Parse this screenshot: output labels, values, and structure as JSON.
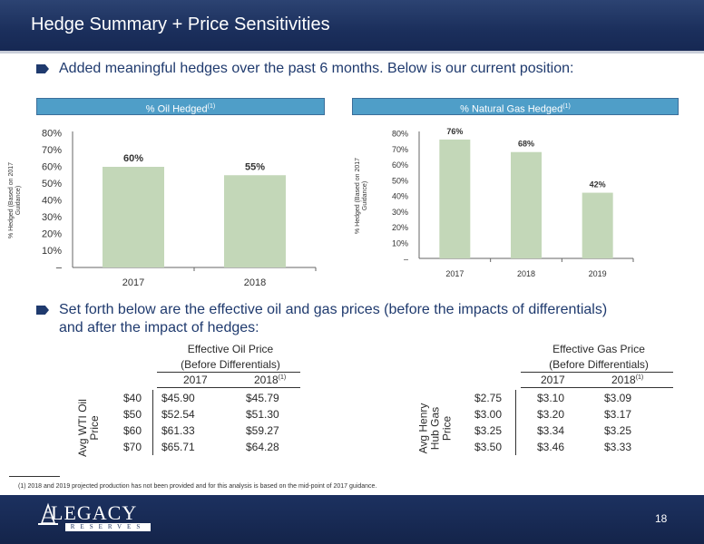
{
  "header": {
    "title": "Hedge Summary + Price Sensitivities"
  },
  "bullets": [
    "Added meaningful hedges over the past 6 months.  Below is our current position:",
    "Set forth below are the effective oil and gas prices (before the impacts of differentials)",
    "and after the impact of hedges:"
  ],
  "chart_data": [
    {
      "type": "bar",
      "title": "% Oil Hedged",
      "title_sup": "(1)",
      "ylabel": "% Hedged (Based on 2017 Guidance)",
      "categories": [
        "2017",
        "2018"
      ],
      "values": [
        60,
        55
      ],
      "data_labels": [
        "60%",
        "55%"
      ],
      "ylim": [
        0,
        80
      ],
      "ticks": [
        "–",
        "10%",
        "20%",
        "30%",
        "40%",
        "50%",
        "60%",
        "70%",
        "80%"
      ],
      "bar_color": "#c3d7b8",
      "grid": false
    },
    {
      "type": "bar",
      "title": "% Natural Gas Hedged",
      "title_sup": "(1)",
      "ylabel": "% Hedged (Based on 2017 Guidance)",
      "categories": [
        "2017",
        "2018",
        "2019"
      ],
      "values": [
        76,
        68,
        42
      ],
      "data_labels": [
        "76%",
        "68%",
        "42%"
      ],
      "ylim": [
        0,
        80
      ],
      "ticks": [
        "–",
        "10%",
        "20%",
        "30%",
        "40%",
        "50%",
        "60%",
        "70%",
        "80%"
      ],
      "bar_color": "#c3d7b8",
      "grid": false
    }
  ],
  "oil_table": {
    "title_line1": "Effective Oil Price",
    "title_line2": "(Before Differentials)",
    "col1": "2017",
    "col2": "2018",
    "col2_sup": "(1)",
    "row_label_line1": "Avg WTI Oil",
    "row_label_line2": "Price",
    "rows": [
      {
        "price": "$40",
        "v2017": "$45.90",
        "v2018": "$45.79"
      },
      {
        "price": "$50",
        "v2017": "$52.54",
        "v2018": "$51.30"
      },
      {
        "price": "$60",
        "v2017": "$61.33",
        "v2018": "$59.27"
      },
      {
        "price": "$70",
        "v2017": "$65.71",
        "v2018": "$64.28"
      }
    ]
  },
  "gas_table": {
    "title_line1": "Effective Gas Price",
    "title_line2": "(Before Differentials)",
    "col1": "2017",
    "col2": "2018",
    "col2_sup": "(1)",
    "row_label_line1": "Avg Henry",
    "row_label_line2": "Hub Gas",
    "row_label_line3": "Price",
    "rows": [
      {
        "price": "$2.75",
        "v2017": "$3.10",
        "v2018": "$3.09"
      },
      {
        "price": "$3.00",
        "v2017": "$3.20",
        "v2018": "$3.17"
      },
      {
        "price": "$3.25",
        "v2017": "$3.34",
        "v2018": "$3.25"
      },
      {
        "price": "$3.50",
        "v2017": "$3.46",
        "v2018": "$3.33"
      }
    ]
  },
  "footnote": "(1)     2018 and 2019 projected production has not been provided and for this analysis is based on the mid-point of 2017 guidance.",
  "footer": {
    "logo_word": "LEGACY",
    "logo_sub": "RESERVES",
    "page_number": "18"
  }
}
